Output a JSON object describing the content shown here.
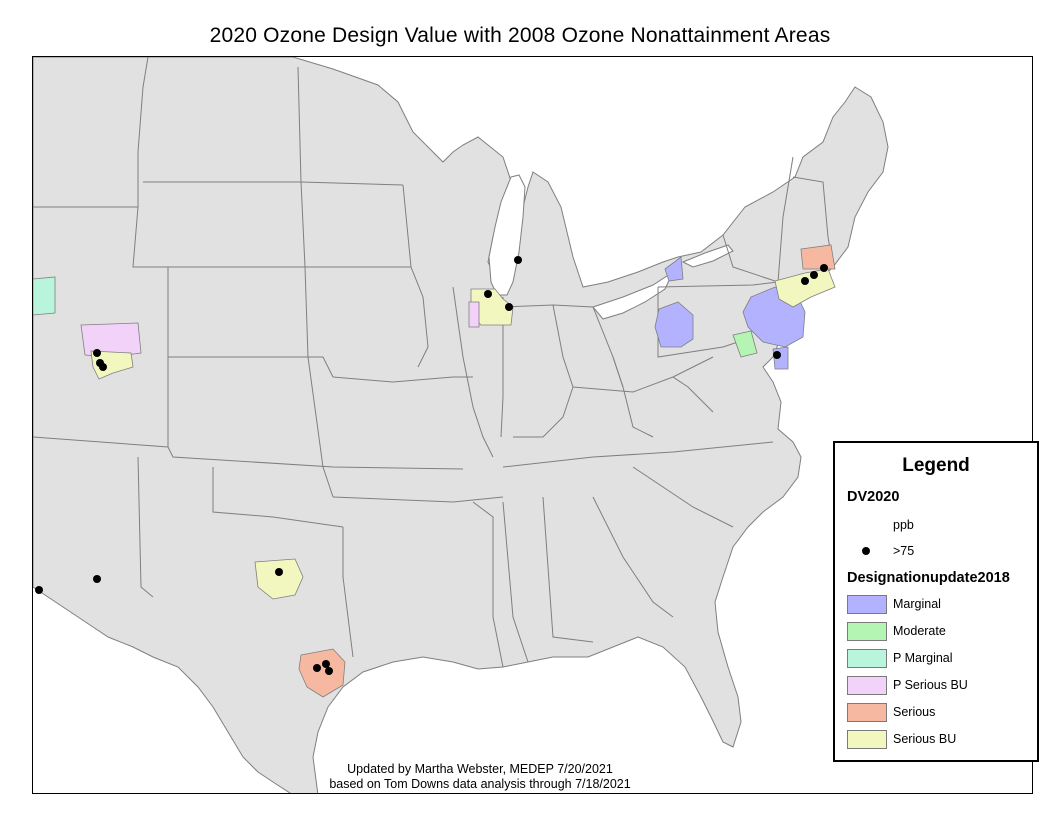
{
  "title": "2020 Ozone Design Value with 2008 Ozone Nonattainment Areas",
  "credit": {
    "line1": "Updated by Martha Webster, MEDEP 7/20/2021",
    "line2": "based on Tom Downs data analysis through 7/18/2021"
  },
  "legend": {
    "title": "Legend",
    "dv_heading": "DV2020",
    "unit": "ppb",
    "dot_label": ">75",
    "designation_heading": "Designationupdate2018",
    "classes": [
      {
        "label": "Marginal",
        "color": "#b2b2ff"
      },
      {
        "label": "Moderate",
        "color": "#b4f5b4"
      },
      {
        "label": "P Marginal",
        "color": "#b8f5dc"
      },
      {
        "label": "P Serious BU",
        "color": "#f2d2f8"
      },
      {
        "label": "Serious",
        "color": "#f7b8a2"
      },
      {
        "label": "Serious BU",
        "color": "#f2f7bf"
      }
    ]
  },
  "colors": {
    "land": "#e1e1e1",
    "water": "#ffffff",
    "border": "#7f7f7f",
    "site": "#000000"
  }
}
